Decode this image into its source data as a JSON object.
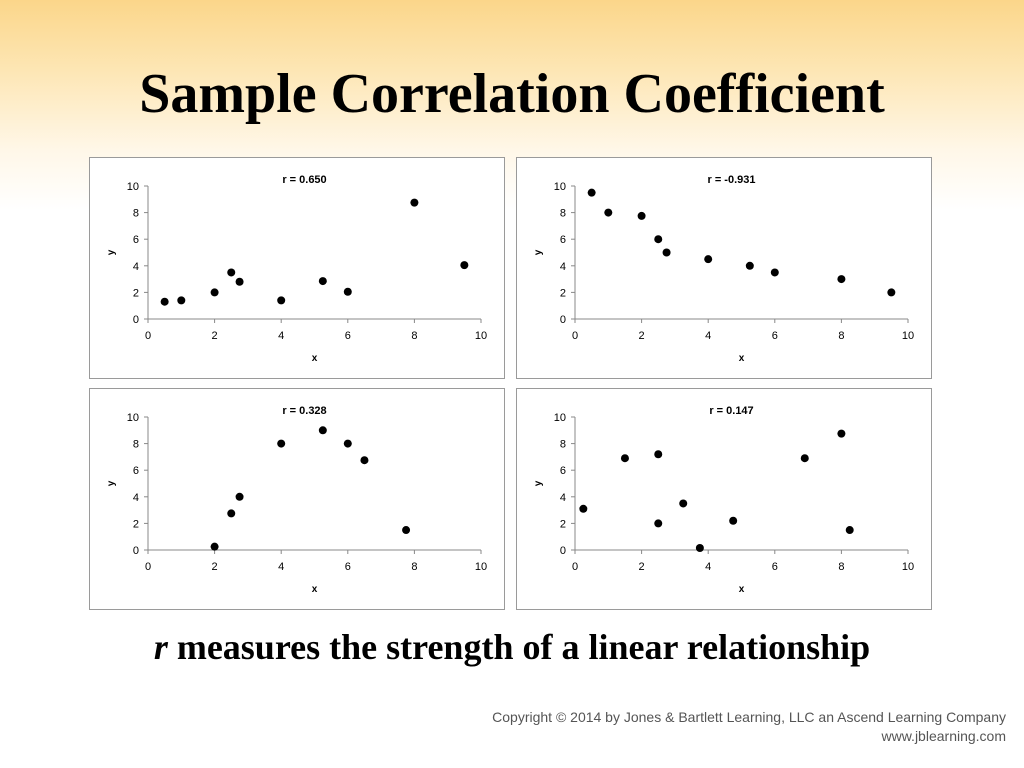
{
  "slide": {
    "title": "Sample Correlation Coefficient",
    "caption_var": "r",
    "caption_rest": " measures the strength of a linear relationship",
    "copyright": "Copyright © 2014 by Jones & Bartlett Learning, LLC an Ascend Learning Company",
    "website": "www.jblearning.com"
  },
  "chart_data": [
    {
      "type": "scatter",
      "title": "r = 0.650",
      "xlabel": "x",
      "ylabel": "y",
      "xlim": [
        0,
        10
      ],
      "ylim": [
        0,
        10
      ],
      "xticks": [
        0,
        2,
        4,
        6,
        8,
        10
      ],
      "yticks": [
        0,
        2,
        4,
        6,
        8,
        10
      ],
      "points": [
        [
          0.5,
          1.3
        ],
        [
          1.0,
          1.4
        ],
        [
          2.0,
          2.0
        ],
        [
          2.5,
          3.5
        ],
        [
          2.75,
          2.8
        ],
        [
          4.0,
          1.4
        ],
        [
          5.25,
          2.85
        ],
        [
          6.0,
          2.05
        ],
        [
          8.0,
          8.75
        ],
        [
          9.5,
          4.05
        ]
      ]
    },
    {
      "type": "scatter",
      "title": "r = -0.931",
      "xlabel": "x",
      "ylabel": "y",
      "xlim": [
        0,
        10
      ],
      "ylim": [
        0,
        10
      ],
      "xticks": [
        0,
        2,
        4,
        6,
        8,
        10
      ],
      "yticks": [
        0,
        2,
        4,
        6,
        8,
        10
      ],
      "points": [
        [
          0.5,
          9.5
        ],
        [
          1.0,
          8.0
        ],
        [
          2.0,
          7.75
        ],
        [
          2.5,
          6.0
        ],
        [
          2.75,
          5.0
        ],
        [
          4.0,
          4.5
        ],
        [
          5.25,
          4.0
        ],
        [
          6.0,
          3.5
        ],
        [
          8.0,
          3.0
        ],
        [
          9.5,
          2.0
        ]
      ]
    },
    {
      "type": "scatter",
      "title": "r = 0.328",
      "xlabel": "x",
      "ylabel": "y",
      "xlim": [
        0,
        10
      ],
      "ylim": [
        0,
        10
      ],
      "xticks": [
        0,
        2,
        4,
        6,
        8,
        10
      ],
      "yticks": [
        0,
        2,
        4,
        6,
        8,
        10
      ],
      "points": [
        [
          2.0,
          0.25
        ],
        [
          2.5,
          2.75
        ],
        [
          2.75,
          4.0
        ],
        [
          4.0,
          8.0
        ],
        [
          5.25,
          9.0
        ],
        [
          6.0,
          8.0
        ],
        [
          6.5,
          6.75
        ],
        [
          7.75,
          1.5
        ]
      ]
    },
    {
      "type": "scatter",
      "title": "r = 0.147",
      "xlabel": "x",
      "ylabel": "y",
      "xlim": [
        0,
        10
      ],
      "ylim": [
        0,
        10
      ],
      "xticks": [
        0,
        2,
        4,
        6,
        8,
        10
      ],
      "yticks": [
        0,
        2,
        4,
        6,
        8,
        10
      ],
      "points": [
        [
          0.25,
          3.1
        ],
        [
          1.5,
          6.9
        ],
        [
          2.5,
          7.2
        ],
        [
          2.5,
          2.0
        ],
        [
          3.25,
          3.5
        ],
        [
          3.75,
          0.15
        ],
        [
          4.75,
          2.2
        ],
        [
          6.9,
          6.9
        ],
        [
          8.0,
          8.75
        ],
        [
          8.25,
          1.5
        ]
      ]
    }
  ]
}
